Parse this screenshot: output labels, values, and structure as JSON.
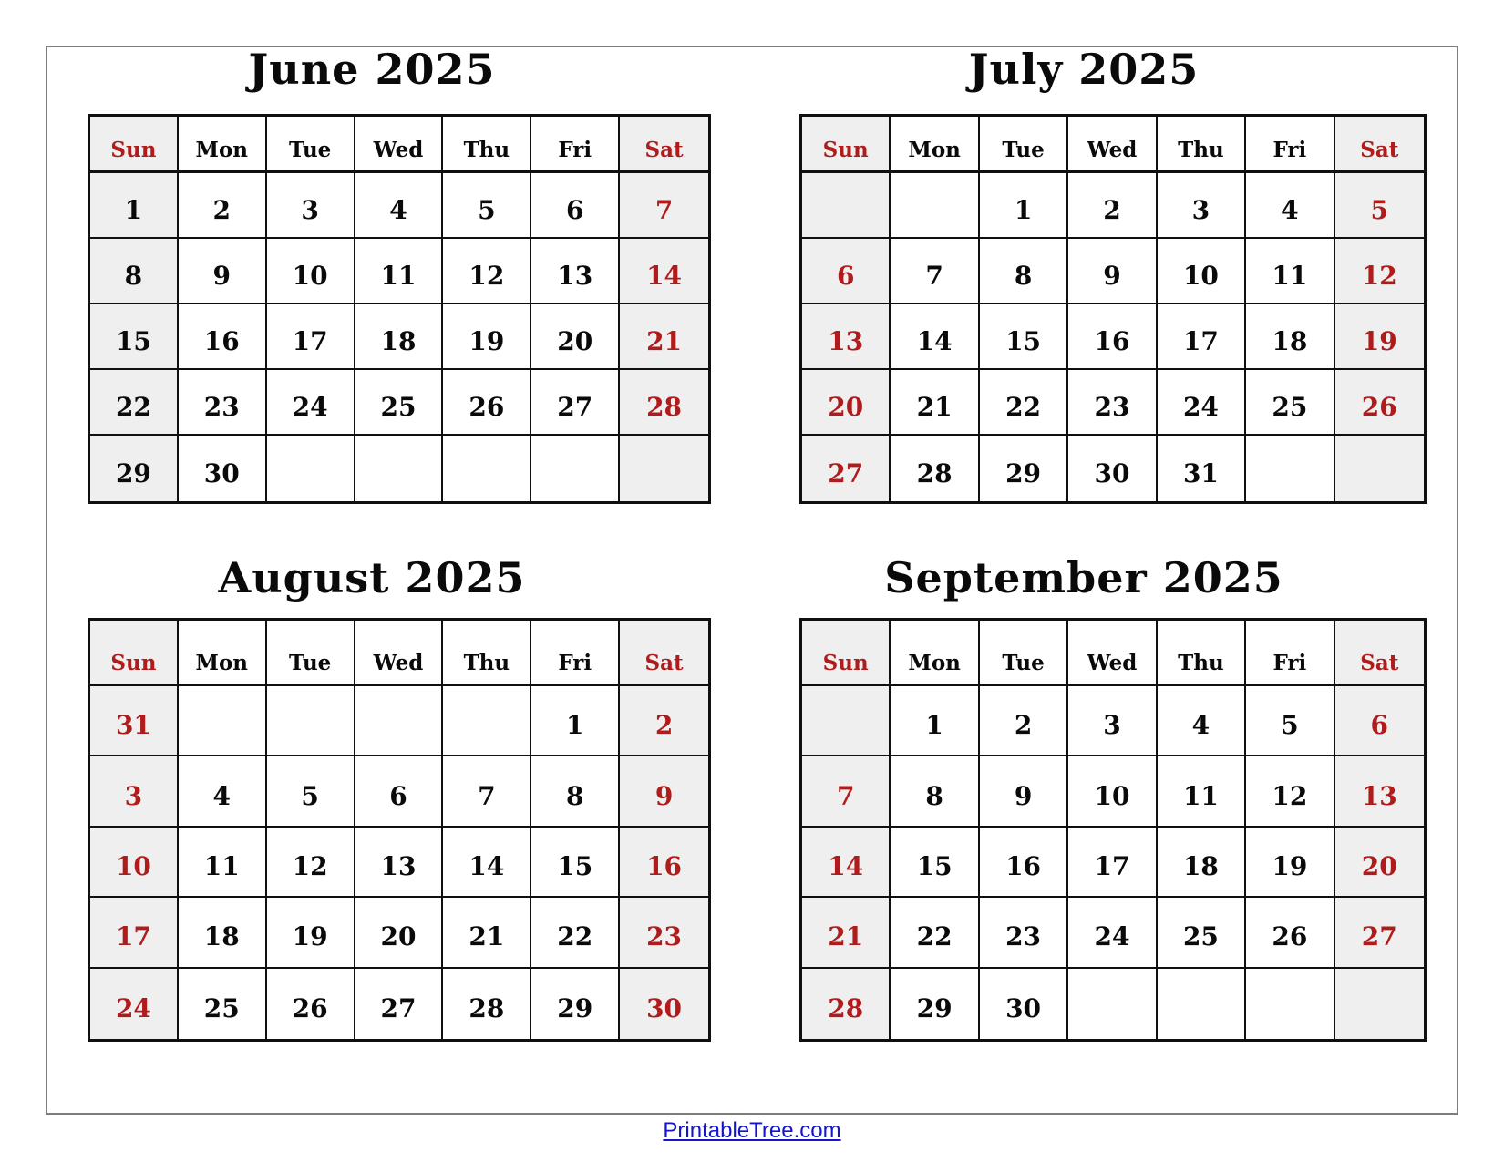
{
  "page": {
    "footer": {
      "label": "PrintableTree.com"
    }
  },
  "calendar": {
    "weekday_headers": [
      "Sun",
      "Mon",
      "Tue",
      "Wed",
      "Thu",
      "Fri",
      "Sat"
    ],
    "colors": {
      "weekend_text": "#b01c1c",
      "weekend_background": "#efefef",
      "grid_line": "#101010",
      "page_border": "#7d7d7d",
      "link_blue": "#1515cc"
    },
    "months": [
      {
        "title": "June 2025",
        "red_header_columns": [
          0,
          6
        ],
        "red_day_columns": [
          6
        ],
        "weeks": [
          [
            "1",
            "2",
            "3",
            "4",
            "5",
            "6",
            "7"
          ],
          [
            "8",
            "9",
            "10",
            "11",
            "12",
            "13",
            "14"
          ],
          [
            "15",
            "16",
            "17",
            "18",
            "19",
            "20",
            "21"
          ],
          [
            "22",
            "23",
            "24",
            "25",
            "26",
            "27",
            "28"
          ],
          [
            "29",
            "30",
            "",
            "",
            "",
            "",
            ""
          ]
        ]
      },
      {
        "title": "July 2025",
        "red_header_columns": [
          0,
          6
        ],
        "red_day_columns": [
          0,
          6
        ],
        "weeks": [
          [
            "",
            "",
            "1",
            "2",
            "3",
            "4",
            "5"
          ],
          [
            "6",
            "7",
            "8",
            "9",
            "10",
            "11",
            "12"
          ],
          [
            "13",
            "14",
            "15",
            "16",
            "17",
            "18",
            "19"
          ],
          [
            "20",
            "21",
            "22",
            "23",
            "24",
            "25",
            "26"
          ],
          [
            "27",
            "28",
            "29",
            "30",
            "31",
            "",
            ""
          ]
        ]
      },
      {
        "title": "August 2025",
        "red_header_columns": [
          0,
          6
        ],
        "red_day_columns": [
          0,
          6
        ],
        "weeks": [
          [
            "31",
            "",
            "",
            "",
            "",
            "1",
            "2"
          ],
          [
            "3",
            "4",
            "5",
            "6",
            "7",
            "8",
            "9"
          ],
          [
            "10",
            "11",
            "12",
            "13",
            "14",
            "15",
            "16"
          ],
          [
            "17",
            "18",
            "19",
            "20",
            "21",
            "22",
            "23"
          ],
          [
            "24",
            "25",
            "26",
            "27",
            "28",
            "29",
            "30"
          ]
        ]
      },
      {
        "title": "September 2025",
        "red_header_columns": [
          0,
          6
        ],
        "red_day_columns": [
          0,
          6
        ],
        "weeks": [
          [
            "",
            "1",
            "2",
            "3",
            "4",
            "5",
            "6"
          ],
          [
            "7",
            "8",
            "9",
            "10",
            "11",
            "12",
            "13"
          ],
          [
            "14",
            "15",
            "16",
            "17",
            "18",
            "19",
            "20"
          ],
          [
            "21",
            "22",
            "23",
            "24",
            "25",
            "26",
            "27"
          ],
          [
            "28",
            "29",
            "30",
            "",
            "",
            "",
            ""
          ]
        ]
      }
    ]
  }
}
